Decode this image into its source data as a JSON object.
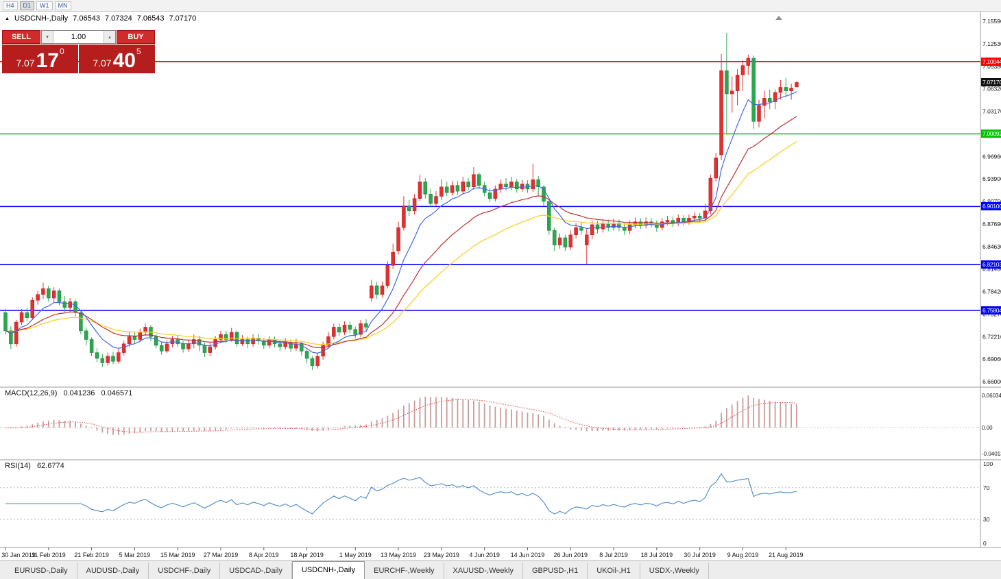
{
  "toolbar": {
    "timeframes": [
      "H4",
      "D1",
      "W1",
      "MN"
    ],
    "active": "D1"
  },
  "chart_header": {
    "symbol": "USDCNH-,Daily",
    "o": "7.06543",
    "h": "7.07324",
    "l": "7.06543",
    "c": "7.07170"
  },
  "trade_panel": {
    "sell_label": "SELL",
    "buy_label": "BUY",
    "volume": "1.00",
    "sell_price_main": "7.07",
    "sell_price_big": "17",
    "sell_price_pip": "0",
    "buy_price_main": "7.07",
    "buy_price_big": "40",
    "buy_price_pip": "5"
  },
  "price_axis": {
    "labels": [
      "7.15590",
      "7.12530",
      "7.09380",
      "7.06320",
      "7.03170",
      "7.00110",
      "6.96960",
      "6.93900",
      "6.90750",
      "6.87690",
      "6.84630",
      "6.81480",
      "6.78420",
      "6.75270",
      "6.72210",
      "6.69060",
      "6.66000"
    ]
  },
  "hlines": [
    {
      "price": 7.10044,
      "label": "7.10044",
      "color": "#ff0000"
    },
    {
      "price": 7.00092,
      "label": "7.00092",
      "color": "#00c400"
    },
    {
      "price": 6.901,
      "label": "6.90100",
      "color": "#0000ff"
    },
    {
      "price": 6.82103,
      "label": "6.82103",
      "color": "#0000ff"
    },
    {
      "price": 6.75804,
      "label": "6.75804",
      "color": "#0000ff"
    }
  ],
  "current_price": {
    "value": 7.0717,
    "label": "7.07170"
  },
  "macd": {
    "name": "MACD(12,26,9)",
    "value_main": "0.041236",
    "value_signal": "0.046571",
    "axis": [
      "0.060343",
      "0.00",
      "-0.040136"
    ]
  },
  "rsi": {
    "name": "RSI(14)",
    "value": "62.6774",
    "axis": [
      "100",
      "70",
      "30",
      "0"
    ],
    "levels": [
      70,
      30
    ]
  },
  "x_axis": {
    "ticks": [
      {
        "i": 0,
        "label": "30 Jan 2019"
      },
      {
        "i": 8,
        "label": "11 Feb 2019"
      },
      {
        "i": 16,
        "label": "21 Feb 2019"
      },
      {
        "i": 24,
        "label": "5 Mar 2019"
      },
      {
        "i": 32,
        "label": "15 Mar 2019"
      },
      {
        "i": 40,
        "label": "27 Mar 2019"
      },
      {
        "i": 48,
        "label": "8 Apr 2019"
      },
      {
        "i": 56,
        "label": "18 Apr 2019"
      },
      {
        "i": 65,
        "label": "1 May 2019"
      },
      {
        "i": 73,
        "label": "13 May 2019"
      },
      {
        "i": 81,
        "label": "23 May 2019"
      },
      {
        "i": 89,
        "label": "4 Jun 2019"
      },
      {
        "i": 97,
        "label": "14 Jun 2019"
      },
      {
        "i": 105,
        "label": "26 Jun 2019"
      },
      {
        "i": 113,
        "label": "8 Jul 2019"
      },
      {
        "i": 121,
        "label": "18 Jul 2019"
      },
      {
        "i": 129,
        "label": "30 Jul 2019"
      },
      {
        "i": 137,
        "label": "9 Aug 2019"
      },
      {
        "i": 145,
        "label": "21 Aug 2019"
      }
    ]
  },
  "tabs": [
    {
      "label": "EURUSD-,Daily",
      "active": false
    },
    {
      "label": "AUDUSD-,Daily",
      "active": false
    },
    {
      "label": "USDCHF-,Daily",
      "active": false
    },
    {
      "label": "USDCAD-,Daily",
      "active": false
    },
    {
      "label": "USDCNH-,Daily",
      "active": true
    },
    {
      "label": "EURCHF-,Weekly",
      "active": false
    },
    {
      "label": "XAUUSD-,Weekly",
      "active": false
    },
    {
      "label": "GBPUSD-,H1",
      "active": false
    },
    {
      "label": "UKOil-,H1",
      "active": false
    },
    {
      "label": "USDX-,Weekly",
      "active": false
    }
  ],
  "chart_data": {
    "type": "candlestick",
    "title": "USDCNH-,Daily",
    "ylim": [
      6.66,
      7.1559
    ],
    "ma_periods": {
      "fast": 8,
      "mid": 20,
      "slow": 34
    },
    "colors": {
      "up": "#e03030",
      "up_edge": "#b91c1c",
      "down": "#2aa84e",
      "down_edge": "#1c7d39",
      "ma_fast": "#4169e1",
      "ma_mid": "#c03030",
      "ma_slow": "#f5d327",
      "macd_hist": "#c99b9b",
      "macd_signal": "#dd4444",
      "rsi": "#4a86c8"
    },
    "candles": [
      [
        6.755,
        6.76,
        6.725,
        6.73
      ],
      [
        6.73,
        6.736,
        6.705,
        6.712
      ],
      [
        6.712,
        6.745,
        6.708,
        6.742
      ],
      [
        6.742,
        6.76,
        6.738,
        6.755
      ],
      [
        6.755,
        6.762,
        6.743,
        6.748
      ],
      [
        6.748,
        6.776,
        6.745,
        6.772
      ],
      [
        6.772,
        6.785,
        6.766,
        6.78
      ],
      [
        6.78,
        6.796,
        6.774,
        6.788
      ],
      [
        6.788,
        6.792,
        6.77,
        6.775
      ],
      [
        6.775,
        6.79,
        6.769,
        6.785
      ],
      [
        6.785,
        6.788,
        6.765,
        6.77
      ],
      [
        6.77,
        6.778,
        6.756,
        6.762
      ],
      [
        6.762,
        6.775,
        6.755,
        6.77
      ],
      [
        6.77,
        6.773,
        6.75,
        6.755
      ],
      [
        6.755,
        6.758,
        6.725,
        6.73
      ],
      [
        6.73,
        6.735,
        6.71,
        6.718
      ],
      [
        6.718,
        6.721,
        6.695,
        6.7
      ],
      [
        6.7,
        6.706,
        6.687,
        6.692
      ],
      [
        6.692,
        6.698,
        6.68,
        6.686
      ],
      [
        6.686,
        6.7,
        6.682,
        6.695
      ],
      [
        6.695,
        6.701,
        6.684,
        6.688
      ],
      [
        6.688,
        6.705,
        6.685,
        6.7
      ],
      [
        6.7,
        6.716,
        6.696,
        6.712
      ],
      [
        6.712,
        6.728,
        6.708,
        6.722
      ],
      [
        6.722,
        6.729,
        6.713,
        6.718
      ],
      [
        6.718,
        6.733,
        6.714,
        6.728
      ],
      [
        6.728,
        6.74,
        6.723,
        6.735
      ],
      [
        6.735,
        6.738,
        6.716,
        6.722
      ],
      [
        6.722,
        6.725,
        6.706,
        6.71
      ],
      [
        6.71,
        6.715,
        6.697,
        6.702
      ],
      [
        6.702,
        6.717,
        6.699,
        6.712
      ],
      [
        6.712,
        6.723,
        6.707,
        6.718
      ],
      [
        6.718,
        6.724,
        6.708,
        6.712
      ],
      [
        6.712,
        6.716,
        6.7,
        6.705
      ],
      [
        6.705,
        6.718,
        6.701,
        6.712
      ],
      [
        6.712,
        6.725,
        6.706,
        6.718
      ],
      [
        6.718,
        6.723,
        6.702,
        6.71
      ],
      [
        6.71,
        6.714,
        6.694,
        6.7
      ],
      [
        6.7,
        6.713,
        6.695,
        6.708
      ],
      [
        6.708,
        6.723,
        6.704,
        6.718
      ],
      [
        6.718,
        6.73,
        6.713,
        6.725
      ],
      [
        6.725,
        6.73,
        6.714,
        6.718
      ],
      [
        6.718,
        6.734,
        6.715,
        6.728
      ],
      [
        6.728,
        6.73,
        6.708,
        6.712
      ],
      [
        6.712,
        6.724,
        6.709,
        6.718
      ],
      [
        6.718,
        6.722,
        6.706,
        6.712
      ],
      [
        6.712,
        6.725,
        6.708,
        6.72
      ],
      [
        6.72,
        6.726,
        6.711,
        6.716
      ],
      [
        6.716,
        6.72,
        6.705,
        6.71
      ],
      [
        6.71,
        6.723,
        6.706,
        6.718
      ],
      [
        6.718,
        6.722,
        6.707,
        6.712
      ],
      [
        6.712,
        6.718,
        6.702,
        6.708
      ],
      [
        6.708,
        6.72,
        6.704,
        6.714
      ],
      [
        6.714,
        6.718,
        6.701,
        6.706
      ],
      [
        6.706,
        6.719,
        6.702,
        6.712
      ],
      [
        6.712,
        6.715,
        6.696,
        6.702
      ],
      [
        6.702,
        6.705,
        6.685,
        6.692
      ],
      [
        6.692,
        6.695,
        6.676,
        6.682
      ],
      [
        6.682,
        6.7,
        6.678,
        6.695
      ],
      [
        6.695,
        6.715,
        6.69,
        6.71
      ],
      [
        6.71,
        6.728,
        6.706,
        6.722
      ],
      [
        6.722,
        6.74,
        6.718,
        6.735
      ],
      [
        6.735,
        6.74,
        6.723,
        6.728
      ],
      [
        6.728,
        6.743,
        6.724,
        6.738
      ],
      [
        6.738,
        6.743,
        6.727,
        6.732
      ],
      [
        6.732,
        6.736,
        6.72,
        6.725
      ],
      [
        6.725,
        6.745,
        6.721,
        6.74
      ],
      [
        6.74,
        6.746,
        6.73,
        6.735
      ],
      [
        6.775,
        6.8,
        6.77,
        6.792
      ],
      [
        6.792,
        6.797,
        6.774,
        6.78
      ],
      [
        6.78,
        6.798,
        6.776,
        6.792
      ],
      [
        6.792,
        6.826,
        6.788,
        6.82
      ],
      [
        6.82,
        6.85,
        6.815,
        6.838
      ],
      [
        6.84,
        6.88,
        6.835,
        6.872
      ],
      [
        6.872,
        6.915,
        6.868,
        6.902
      ],
      [
        6.902,
        6.91,
        6.888,
        6.895
      ],
      [
        6.895,
        6.918,
        6.89,
        6.912
      ],
      [
        6.912,
        6.945,
        6.908,
        6.935
      ],
      [
        6.935,
        6.94,
        6.912,
        6.918
      ],
      [
        6.918,
        6.925,
        6.9,
        6.905
      ],
      [
        6.905,
        6.922,
        6.901,
        6.915
      ],
      [
        6.915,
        6.938,
        6.91,
        6.928
      ],
      [
        6.928,
        6.935,
        6.915,
        6.92
      ],
      [
        6.92,
        6.936,
        6.916,
        6.93
      ],
      [
        6.93,
        6.936,
        6.917,
        6.922
      ],
      [
        6.922,
        6.942,
        6.918,
        6.935
      ],
      [
        6.935,
        6.94,
        6.923,
        6.928
      ],
      [
        6.928,
        6.955,
        6.924,
        6.945
      ],
      [
        6.945,
        6.948,
        6.925,
        6.93
      ],
      [
        6.93,
        6.935,
        6.915,
        6.92
      ],
      [
        6.92,
        6.926,
        6.907,
        6.912
      ],
      [
        6.912,
        6.93,
        6.908,
        6.925
      ],
      [
        6.925,
        6.938,
        6.92,
        6.932
      ],
      [
        6.932,
        6.94,
        6.923,
        6.928
      ],
      [
        6.928,
        6.942,
        6.924,
        6.935
      ],
      [
        6.935,
        6.939,
        6.92,
        6.925
      ],
      [
        6.925,
        6.938,
        6.921,
        6.932
      ],
      [
        6.932,
        6.937,
        6.92,
        6.925
      ],
      [
        6.925,
        6.96,
        6.921,
        6.938
      ],
      [
        6.938,
        6.943,
        6.915,
        6.928
      ],
      [
        6.928,
        6.93,
        6.902,
        6.908
      ],
      [
        6.908,
        6.91,
        6.862,
        6.868
      ],
      [
        6.868,
        6.872,
        6.84,
        6.848
      ],
      [
        6.848,
        6.864,
        6.843,
        6.858
      ],
      [
        6.858,
        6.862,
        6.84,
        6.845
      ],
      [
        6.845,
        6.868,
        6.841,
        6.862
      ],
      [
        6.862,
        6.878,
        6.857,
        6.872
      ],
      [
        6.872,
        6.879,
        6.862,
        6.868
      ],
      [
        6.848,
        6.87,
        6.822,
        6.862
      ],
      [
        6.862,
        6.882,
        6.856,
        6.876
      ],
      [
        6.876,
        6.881,
        6.864,
        6.87
      ],
      [
        6.87,
        6.883,
        6.865,
        6.878
      ],
      [
        6.878,
        6.883,
        6.867,
        6.872
      ],
      [
        6.872,
        6.884,
        6.868,
        6.878
      ],
      [
        6.878,
        6.883,
        6.867,
        6.872
      ],
      [
        6.872,
        6.878,
        6.862,
        6.868
      ],
      [
        6.868,
        6.882,
        6.863,
        6.876
      ],
      [
        6.876,
        6.886,
        6.871,
        6.88
      ],
      [
        6.88,
        6.885,
        6.87,
        6.875
      ],
      [
        6.875,
        6.886,
        6.871,
        6.88
      ],
      [
        6.88,
        6.885,
        6.872,
        6.878
      ],
      [
        6.878,
        6.882,
        6.866,
        6.872
      ],
      [
        6.872,
        6.885,
        6.868,
        6.88
      ],
      [
        6.88,
        6.888,
        6.875,
        6.882
      ],
      [
        6.882,
        6.887,
        6.873,
        6.878
      ],
      [
        6.878,
        6.89,
        6.874,
        6.885
      ],
      [
        6.885,
        6.889,
        6.875,
        6.88
      ],
      [
        6.88,
        6.89,
        6.876,
        6.885
      ],
      [
        6.885,
        6.893,
        6.88,
        6.888
      ],
      [
        6.888,
        6.892,
        6.879,
        6.885
      ],
      [
        6.885,
        6.905,
        6.88,
        6.895
      ],
      [
        6.895,
        6.945,
        6.89,
        6.94
      ],
      [
        6.94,
        6.975,
        6.935,
        6.968
      ],
      [
        6.972,
        7.111,
        6.965,
        7.088
      ],
      [
        7.088,
        7.14,
        7.002,
        7.056
      ],
      [
        7.056,
        7.08,
        7.03,
        7.06
      ],
      [
        7.06,
        7.09,
        7.04,
        7.082
      ],
      [
        7.082,
        7.102,
        7.06,
        7.095
      ],
      [
        7.095,
        7.11,
        7.082,
        7.105
      ],
      [
        7.105,
        7.109,
        7.008,
        7.018
      ],
      [
        7.018,
        7.048,
        7.01,
        7.04
      ],
      [
        7.04,
        7.06,
        7.022,
        7.05
      ],
      [
        7.05,
        7.062,
        7.035,
        7.045
      ],
      [
        7.045,
        7.062,
        7.035,
        7.058
      ],
      [
        7.058,
        7.075,
        7.048,
        7.065
      ],
      [
        7.065,
        7.078,
        7.052,
        7.06
      ],
      [
        7.06,
        7.07,
        7.048,
        7.064
      ],
      [
        7.0654,
        7.0732,
        7.0654,
        7.0717
      ]
    ]
  }
}
